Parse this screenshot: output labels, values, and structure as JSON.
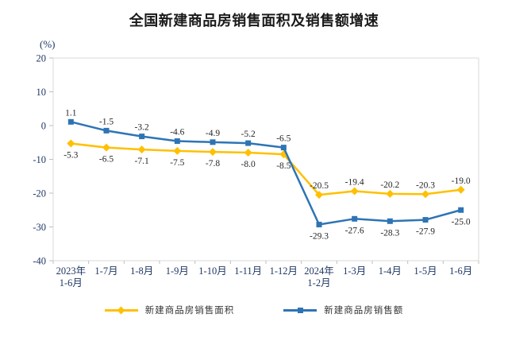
{
  "title": "全国新建商品房销售面积及销售额增速",
  "chart_data": {
    "type": "line",
    "title": "全国新建商品房销售面积及销售额增速",
    "unit_label": "(%)",
    "categories": [
      "2023年\n1-6月",
      "1-7月",
      "1-8月",
      "1-9月",
      "1-10月",
      "1-11月",
      "1-12月",
      "2024年\n1-2月",
      "1-3月",
      "1-4月",
      "1-5月",
      "1-6月"
    ],
    "series": [
      {
        "name": "新建商品房销售面积",
        "color": "#FFC000",
        "marker": "diamond",
        "values": [
          -5.3,
          -6.5,
          -7.1,
          -7.5,
          -7.8,
          -8.0,
          -8.5,
          -20.5,
          -19.4,
          -20.2,
          -20.3,
          -19.0
        ],
        "label_sides": [
          "below",
          "below",
          "below",
          "below",
          "below",
          "below",
          "below",
          "above",
          "above",
          "above",
          "above",
          "above"
        ]
      },
      {
        "name": "新建商品房销售额",
        "color": "#2E74B5",
        "marker": "square",
        "values": [
          1.1,
          -1.5,
          -3.2,
          -4.6,
          -4.9,
          -5.2,
          -6.5,
          -29.3,
          -27.6,
          -28.3,
          -27.9,
          -25.0
        ],
        "label_sides": [
          "above",
          "above",
          "above",
          "above",
          "above",
          "above",
          "above",
          "below",
          "below",
          "below",
          "below",
          "below"
        ]
      }
    ],
    "ylim": [
      -40,
      20
    ],
    "y_tick_step": 10,
    "grid": false,
    "legend_position": "bottom",
    "colors": {
      "axis_label": "#1F3864",
      "data_label": "#262626",
      "plot_border": "#D9D9D9",
      "tick": "#BFBFBF"
    }
  }
}
